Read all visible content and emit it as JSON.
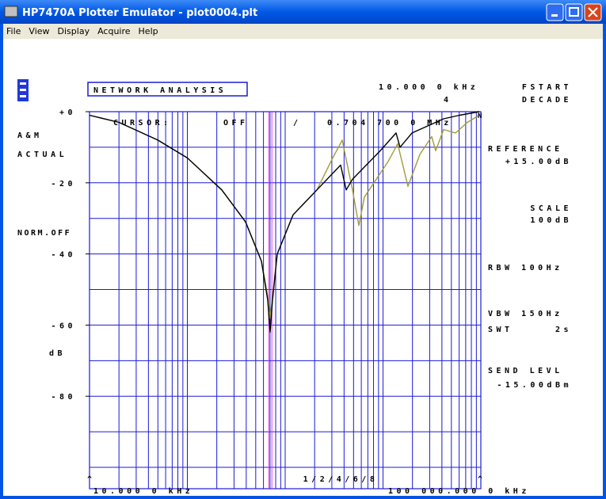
{
  "window": {
    "title": "HP7470A Plotter Emulator - plot0004.plt",
    "menu": [
      "File",
      "View",
      "Display",
      "Acquire",
      "Help"
    ]
  },
  "panel": {
    "mode": "NETWORK ANALYSIS",
    "fstart_value": "10.000 0 kHz",
    "fstart": "FSTART",
    "decades": "4",
    "decade": "DECADE",
    "cursor": "CURSOR:",
    "cursor_state": "OFF",
    "slash": "/",
    "am": "A&M",
    "actual": "ACTUAL",
    "norm": "NORM.OFF",
    "unit": "dB",
    "reference": "REFERENCE",
    "reference_value": "+15.00dB",
    "scale": "SCALE",
    "scale_value": "100dB",
    "rbw": "RBW 100Hz",
    "vbw": "VBW 150Hz",
    "swt": "SWT",
    "swt_value": "2s",
    "send_level": "SEND LEVL",
    "send_level_value": "-15.00dBm",
    "n": "N",
    "start_marker": "^",
    "stop_marker": "^",
    "spacing": "1/2/4/6/8",
    "start": "10.000 0 kHz",
    "stop": "100 000.000 0 kHz"
  },
  "chart_data": {
    "type": "line",
    "x_scale": "log",
    "xlim": [
      10,
      100000
    ],
    "ylim": [
      -106,
      0
    ],
    "yticks": [
      {
        "value": 0,
        "label": "+0"
      },
      -20,
      -40,
      -60,
      -80
    ],
    "ygrid": [
      0,
      -10,
      -20,
      -30,
      -40,
      -50,
      -60,
      -70,
      -80,
      -90,
      -100
    ],
    "xgrid": [
      10,
      20,
      30,
      40,
      50,
      60,
      70,
      80,
      90,
      100,
      200,
      300,
      400,
      500,
      600,
      700,
      800,
      900,
      1000,
      2000,
      3000,
      4000,
      5000,
      6000,
      7000,
      8000,
      9000,
      10000,
      20000,
      30000,
      40000,
      50000,
      60000,
      70000,
      80000,
      90000,
      100000
    ],
    "cursor": {
      "value": 704.7,
      "label": "0.704 700 0 MHz"
    },
    "series": [
      {
        "color": "#a39b3a",
        "x": [
          10,
          20,
          50,
          100,
          225,
          394,
          572,
          663,
          702,
          742,
          830,
          1205,
          2109,
          3062,
          3828,
          4876,
          5665,
          6457,
          11293,
          14125,
          17990,
          23820,
          31480,
          34520,
          41600,
          55080,
          72800,
          96400
        ],
        "values": [
          -1,
          -3,
          -8,
          -13,
          -22,
          -31,
          -42,
          -52,
          -58,
          -52,
          -40,
          -29,
          -22,
          -13,
          -8,
          -22,
          -32,
          -24,
          -14,
          -9,
          -21,
          -12,
          -7,
          -11,
          -5,
          -6,
          -3,
          -1
        ]
      },
      {
        "color": "#000000",
        "x": [
          10,
          20,
          50,
          100,
          225,
          394,
          572,
          663,
          702,
          742,
          830,
          1205,
          2109,
          3687,
          4200,
          4876,
          9375,
          13614,
          14930,
          19770,
          41600,
          60400,
          96400
        ],
        "values": [
          -1,
          -3,
          -8,
          -13,
          -22,
          -31,
          -42,
          -53,
          -62,
          -53,
          -40,
          -29,
          -22,
          -15,
          -22,
          -19,
          -11,
          -6,
          -10,
          -6,
          -2,
          -1,
          0
        ]
      }
    ]
  }
}
